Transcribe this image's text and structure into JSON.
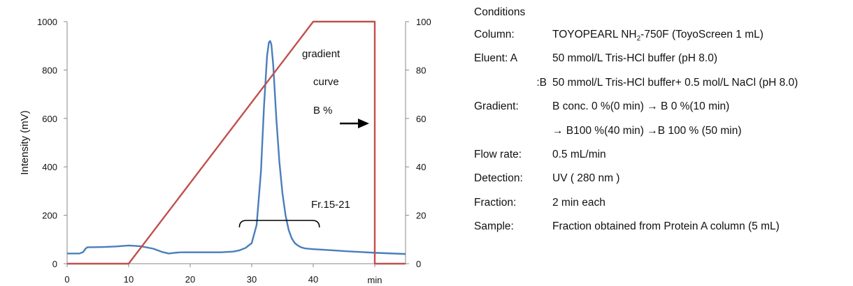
{
  "chart_data": {
    "type": "line",
    "ylabel": "Intensity (mV)",
    "x_unit_label": "min",
    "xlim": [
      0,
      55
    ],
    "ylim": [
      0,
      1000
    ],
    "y2lim": [
      0,
      100
    ],
    "x_ticks": [
      "0",
      "10",
      "20",
      "30",
      "40"
    ],
    "y_ticks": [
      "0",
      "200",
      "400",
      "600",
      "800",
      "1000"
    ],
    "y2_ticks": [
      "0",
      "20",
      "40",
      "60",
      "80",
      "100"
    ],
    "series": [
      {
        "axis": "left",
        "color": "#4a7ebb",
        "x": [
          0,
          2,
          2.6,
          3,
          3.3,
          4,
          6,
          8,
          10,
          12,
          14,
          15.5,
          16.5,
          17.5,
          18.5,
          20,
          25,
          27,
          28,
          29,
          30,
          30.8,
          31.5,
          32,
          32.5,
          32.8,
          33,
          33.2,
          33.5,
          34,
          34.5,
          35,
          35.5,
          36,
          36.5,
          37,
          37.5,
          38,
          38.5,
          39,
          40,
          42,
          45,
          50,
          55
        ],
        "values": [
          42,
          42,
          48,
          62,
          68,
          68,
          69,
          71,
          75,
          72,
          62,
          48,
          42,
          45,
          47,
          47,
          47,
          50,
          55,
          65,
          85,
          160,
          380,
          650,
          860,
          915,
          920,
          905,
          820,
          600,
          420,
          290,
          200,
          140,
          105,
          85,
          75,
          68,
          64,
          62,
          60,
          57,
          52,
          45,
          40
        ]
      },
      {
        "axis": "right",
        "name": "B %",
        "color": "#c0504d",
        "x": [
          0,
          10,
          40,
          50,
          50,
          55
        ],
        "values": [
          0,
          0,
          100,
          100,
          0,
          0
        ]
      }
    ],
    "annotations": {
      "curve_label_line1": "gradient",
      "curve_label_line2": "curve",
      "curve_label_line3": "B %",
      "fraction_label": "Fr.15-21",
      "fraction_range": [
        28,
        41
      ]
    }
  },
  "conditions": {
    "title": "Conditions",
    "column_label": "Column:",
    "column_value_pre": "TOYOPEARL NH",
    "column_value_sub": "2",
    "column_value_post": "-750F (ToyoScreen 1 mL)",
    "eluent_a_label": "Eluent: A",
    "eluent_a_value": "50 mmol/L Tris-HCl buffer (pH 8.0)",
    "eluent_b_label": ":B",
    "eluent_b_value": "50 mmol/L Tris-HCl buffer+ 0.5 mol/L NaCl (pH 8.0)",
    "gradient_label": "Gradient:",
    "gradient_value_1": "B conc. 0 %(0 min) → B 0 %(10 min)",
    "gradient_value_2": "→ B100 %(40 min) →B 100 % (50 min)",
    "flow_label": "Flow rate:",
    "flow_value": "0.5 mL/min",
    "detection_label": "Detection:",
    "detection_value": "UV ( 280 nm )",
    "fraction_label": "Fraction:",
    "fraction_value": "2 min each",
    "sample_label": "Sample:",
    "sample_value": "Fraction obtained from Protein A column (5 mL)"
  }
}
